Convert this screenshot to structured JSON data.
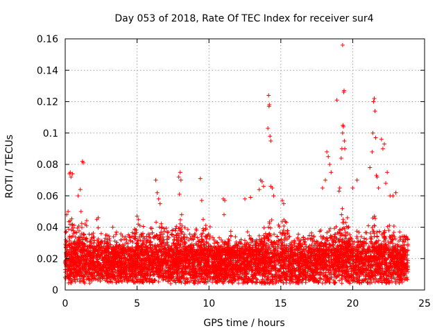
{
  "chart_data": {
    "type": "scatter",
    "title": "Day 053 of 2018, Rate Of TEC Index for receiver sur4",
    "xlabel": "GPS time / hours",
    "ylabel": "ROTI / TECUs",
    "xlim": [
      0,
      25
    ],
    "ylim": [
      0,
      0.16
    ],
    "xticks": [
      0,
      5,
      10,
      15,
      20,
      25
    ],
    "yticks": [
      0,
      0.02,
      0.04,
      0.06,
      0.08,
      0.1,
      0.12,
      0.14,
      0.16
    ],
    "xtick_labels": [
      "0",
      "5",
      "10",
      "15",
      "20",
      "25"
    ],
    "ytick_labels": [
      "0",
      "0.02",
      "0.04",
      "0.06",
      "0.08",
      "0.1",
      "0.12",
      "0.14",
      "0.16"
    ],
    "grid": true,
    "marker": "+",
    "marker_color": "#ff0000",
    "series": [
      {
        "name": "ROTI",
        "description_note": "dense band of points 0.005-0.035 TECU/s over 0-23.8 h with spikes",
        "points": [
          [
            0.1,
            0.048
          ],
          [
            0.2,
            0.05
          ],
          [
            0.3,
            0.074
          ],
          [
            0.35,
            0.075
          ],
          [
            0.4,
            0.072
          ],
          [
            0.5,
            0.074
          ],
          [
            0.9,
            0.06
          ],
          [
            1.05,
            0.064
          ],
          [
            1.2,
            0.082
          ],
          [
            1.25,
            0.081
          ],
          [
            1.1,
            0.05
          ],
          [
            2.2,
            0.045
          ],
          [
            2.3,
            0.046
          ],
          [
            3.3,
            0.04
          ],
          [
            4.8,
            0.036
          ],
          [
            4.9,
            0.034
          ],
          [
            5.0,
            0.047
          ],
          [
            5.1,
            0.045
          ],
          [
            5.2,
            0.041
          ],
          [
            6.3,
            0.07
          ],
          [
            6.4,
            0.062
          ],
          [
            6.5,
            0.058
          ],
          [
            6.6,
            0.055
          ],
          [
            7.9,
            0.072
          ],
          [
            8.0,
            0.075
          ],
          [
            8.05,
            0.07
          ],
          [
            7.95,
            0.061
          ],
          [
            8.1,
            0.048
          ],
          [
            9.4,
            0.071
          ],
          [
            9.5,
            0.057
          ],
          [
            9.6,
            0.045
          ],
          [
            11.0,
            0.058
          ],
          [
            11.1,
            0.057
          ],
          [
            11.05,
            0.048
          ],
          [
            12.5,
            0.058
          ],
          [
            12.9,
            0.059
          ],
          [
            13.6,
            0.07
          ],
          [
            13.7,
            0.069
          ],
          [
            13.8,
            0.066
          ],
          [
            13.5,
            0.064
          ],
          [
            14.1,
            0.103
          ],
          [
            14.2,
            0.118
          ],
          [
            14.15,
            0.124
          ],
          [
            14.18,
            0.117
          ],
          [
            14.25,
            0.098
          ],
          [
            14.3,
            0.095
          ],
          [
            14.3,
            0.066
          ],
          [
            14.4,
            0.065
          ],
          [
            14.5,
            0.06
          ],
          [
            15.1,
            0.057
          ],
          [
            15.2,
            0.055
          ],
          [
            17.9,
            0.065
          ],
          [
            18.1,
            0.07
          ],
          [
            18.2,
            0.088
          ],
          [
            18.3,
            0.085
          ],
          [
            18.4,
            0.08
          ],
          [
            18.5,
            0.075
          ],
          [
            18.9,
            0.121
          ],
          [
            19.05,
            0.063
          ],
          [
            19.1,
            0.065
          ],
          [
            19.2,
            0.084
          ],
          [
            19.25,
            0.09
          ],
          [
            19.3,
            0.1
          ],
          [
            19.32,
            0.105
          ],
          [
            19.35,
            0.104
          ],
          [
            19.38,
            0.126
          ],
          [
            19.4,
            0.127
          ],
          [
            19.42,
            0.095
          ],
          [
            19.45,
            0.09
          ],
          [
            19.3,
            0.156
          ],
          [
            20.0,
            0.065
          ],
          [
            20.3,
            0.07
          ],
          [
            21.2,
            0.078
          ],
          [
            21.35,
            0.088
          ],
          [
            21.4,
            0.1
          ],
          [
            21.45,
            0.12
          ],
          [
            21.5,
            0.122
          ],
          [
            21.55,
            0.114
          ],
          [
            21.6,
            0.097
          ],
          [
            21.65,
            0.073
          ],
          [
            21.7,
            0.072
          ],
          [
            21.8,
            0.065
          ],
          [
            22.0,
            0.096
          ],
          [
            22.1,
            0.09
          ],
          [
            22.2,
            0.093
          ],
          [
            22.3,
            0.068
          ],
          [
            22.4,
            0.075
          ],
          [
            22.6,
            0.06
          ],
          [
            22.8,
            0.06
          ],
          [
            23.0,
            0.062
          ]
        ]
      }
    ]
  }
}
